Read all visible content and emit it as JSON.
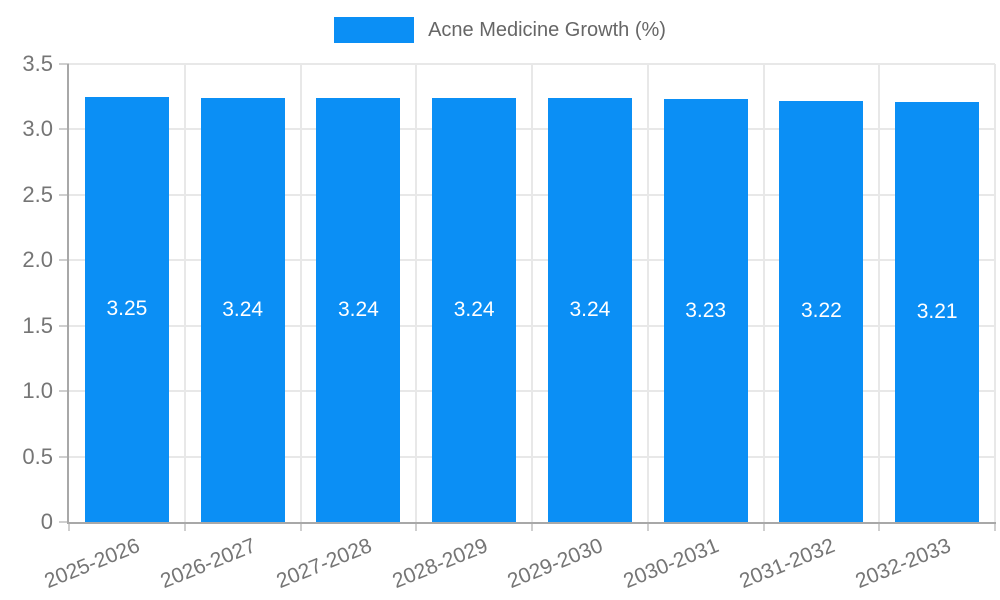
{
  "chart_data": {
    "type": "bar",
    "title": "",
    "legend_position": "top",
    "legend": [
      {
        "label": "Acne Medicine Growth (%)",
        "color": "#0b8ff5"
      }
    ],
    "categories": [
      "2025-2026",
      "2026-2027",
      "2027-2028",
      "2028-2029",
      "2029-2030",
      "2030-2031",
      "2031-2032",
      "2032-2033"
    ],
    "series": [
      {
        "name": "Acne Medicine Growth (%)",
        "values": [
          3.25,
          3.24,
          3.24,
          3.24,
          3.24,
          3.23,
          3.22,
          3.21
        ]
      }
    ],
    "value_labels": [
      "3.25",
      "3.24",
      "3.24",
      "3.24",
      "3.24",
      "3.23",
      "3.22",
      "3.21"
    ],
    "xlabel": "",
    "ylabel": "",
    "ylim": [
      0,
      3.5
    ],
    "yticks": {
      "values": [
        0,
        0.5,
        1,
        1.5,
        2,
        2.5,
        3,
        3.5
      ],
      "labels": [
        "0",
        "0.5",
        "1.0",
        "1.5",
        "2.0",
        "2.5",
        "3.0",
        "3.5"
      ]
    },
    "grid": true,
    "colors": {
      "bar": "#0b8ff5",
      "grid_line": "#e8e8e8",
      "axis_line": "#a8a8a8",
      "tick_mark": "#cfcfcf",
      "tick_text": "#757575",
      "legend_text": "#666666",
      "value_text": "#ffffff",
      "background": "#ffffff"
    }
  }
}
